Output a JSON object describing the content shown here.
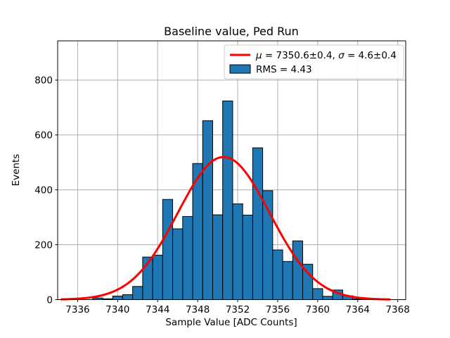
{
  "figure": {
    "title": "Baseline value, Ped Run"
  },
  "chart_data": {
    "type": "bar",
    "subtype": "histogram-with-gaussian-fit",
    "title": "Baseline value, Ped Run",
    "xlabel": "Sample Value [ADC Counts]",
    "ylabel": "Events",
    "xlim": [
      7334.0,
      7368.8
    ],
    "ylim": [
      0,
      943
    ],
    "xticks": [
      7336,
      7340,
      7344,
      7348,
      7352,
      7356,
      7360,
      7364,
      7368
    ],
    "yticks": [
      0,
      200,
      400,
      600,
      800
    ],
    "grid": true,
    "legend_position": "upper right",
    "bin_width": 1,
    "bin_centers": [
      7338,
      7339,
      7340,
      7341,
      7342,
      7343,
      7344,
      7345,
      7346,
      7347,
      7348,
      7349,
      7350,
      7351,
      7352,
      7353,
      7354,
      7355,
      7356,
      7357,
      7358,
      7359,
      7360,
      7361,
      7362,
      7363,
      7364
    ],
    "counts": [
      6,
      3,
      13,
      18,
      48,
      155,
      162,
      365,
      258,
      303,
      496,
      652,
      309,
      724,
      349,
      308,
      553,
      397,
      181,
      139,
      214,
      129,
      40,
      12,
      35,
      14,
      3
    ],
    "fit": {
      "type": "gaussian",
      "mu": 7350.6,
      "mu_err": 0.4,
      "sigma": 4.6,
      "sigma_err": 0.4,
      "amplitude": 520,
      "x_range": [
        7334.4,
        7367.3
      ]
    },
    "rms": 4.43,
    "legend": {
      "entries": [
        {
          "symbol": "line",
          "label": "μ = 7350.6±0.4, σ = 4.6±0.4"
        },
        {
          "symbol": "patch",
          "label": "RMS = 4.43"
        }
      ]
    },
    "colors": {
      "bar_fill": "#1f77b4",
      "bar_edge": "#000000",
      "fit_line": "#ff0000",
      "grid": "#b0b0b0",
      "axes_edge": "#000000",
      "legend_edge": "#cccccc",
      "background": "#ffffff"
    }
  }
}
